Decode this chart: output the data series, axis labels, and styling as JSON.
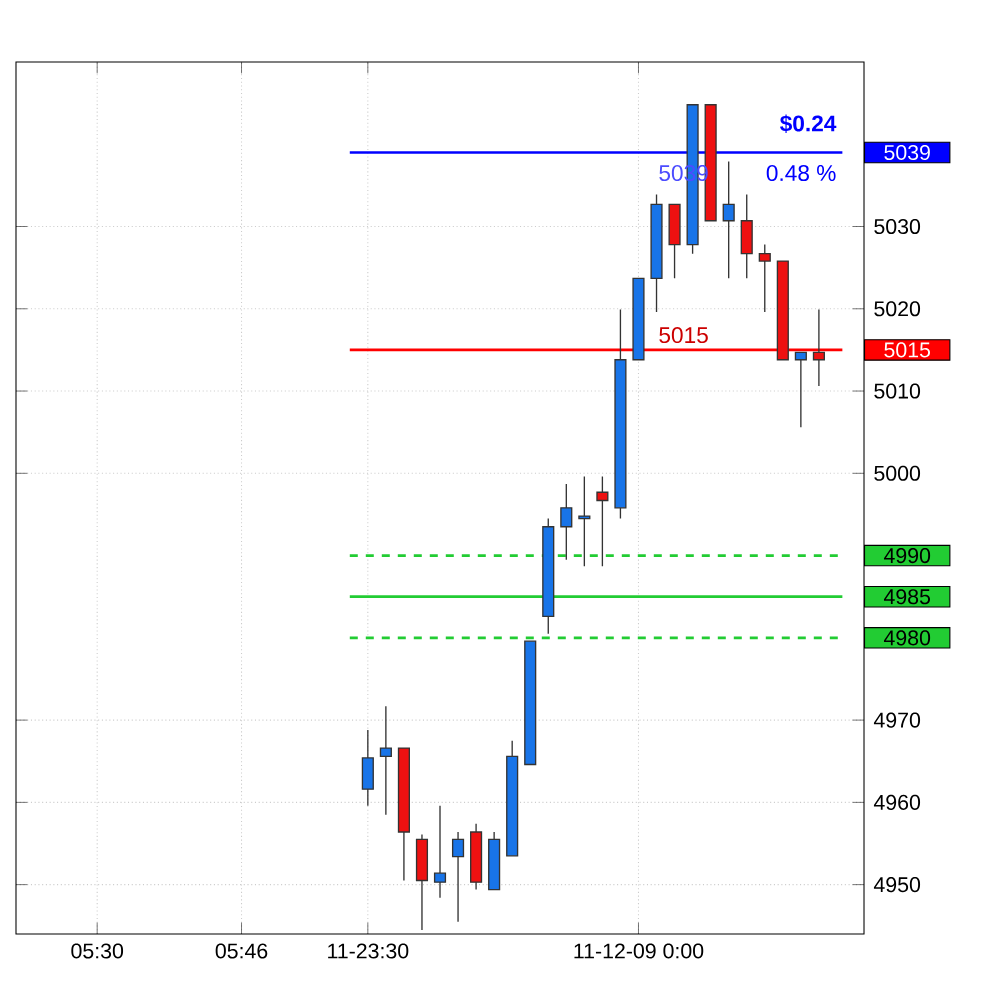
{
  "chart_data": {
    "type": "candlestick",
    "categories": [
      null,
      null,
      null,
      null,
      "05:30",
      null,
      null,
      null,
      null,
      null,
      null,
      null,
      "05:46",
      null,
      null,
      null,
      null,
      null,
      null,
      "11-23:30",
      null,
      null,
      null,
      null,
      null,
      null,
      null,
      null,
      null,
      null,
      null,
      null,
      null,
      null,
      "11-12-09 0:00",
      null,
      null,
      null,
      null,
      null,
      null,
      null,
      null,
      null,
      null,
      null,
      null
    ],
    "ohlc": [
      null,
      null,
      null,
      null,
      null,
      null,
      null,
      null,
      null,
      null,
      null,
      null,
      null,
      null,
      null,
      null,
      null,
      null,
      null,
      [
        4961.6,
        4968.8,
        4959.6,
        4965.4
      ],
      [
        4965.6,
        4971.7,
        4958.5,
        4966.6
      ],
      [
        4966.6,
        4966.6,
        4950.5,
        4956.4
      ],
      [
        4955.5,
        4956.1,
        4944.5,
        4950.5
      ],
      [
        4950.3,
        4959.6,
        4948.4,
        4951.4
      ],
      [
        4953.4,
        4956.4,
        4945.5,
        4955.5
      ],
      [
        4956.4,
        4957.4,
        4949.4,
        4950.3
      ],
      [
        4949.4,
        4956.4,
        4949.4,
        4955.5
      ],
      [
        4953.5,
        4967.5,
        4953.5,
        4965.6
      ],
      [
        4964.6,
        4979.6,
        4964.6,
        4979.6
      ],
      [
        4982.6,
        4994.5,
        4980.5,
        4993.5
      ],
      [
        4993.5,
        4998.7,
        4989.5,
        4995.8
      ],
      [
        4994.5,
        4999.6,
        4988.7,
        4994.8
      ],
      [
        4997.7,
        4999.6,
        4988.7,
        4996.7
      ],
      [
        4995.8,
        5019.9,
        4994.5,
        5013.8
      ],
      [
        5013.8,
        5023.7,
        5013.8,
        5023.7
      ],
      [
        5023.7,
        5033.9,
        5019.6,
        5032.7
      ],
      [
        5032.7,
        5032.7,
        5023.7,
        5027.8
      ],
      [
        5027.8,
        5044.8,
        5026.7,
        5044.8
      ],
      [
        5044.8,
        5044.8,
        5030.7,
        5030.7
      ],
      [
        5030.7,
        5037.9,
        5023.7,
        5032.7
      ],
      [
        5030.7,
        5033.9,
        5023.7,
        5026.7
      ],
      [
        5026.7,
        5027.8,
        5019.6,
        5025.8
      ],
      [
        5025.8,
        5025.8,
        5013.8,
        5013.8
      ],
      [
        5013.8,
        5014.7,
        5005.6,
        5014.7
      ],
      [
        5014.7,
        5019.9,
        5010.6,
        5013.8
      ],
      null,
      null
    ],
    "colors": [
      null,
      null,
      null,
      null,
      null,
      null,
      null,
      null,
      null,
      null,
      null,
      null,
      null,
      null,
      null,
      null,
      null,
      null,
      null,
      "#1874e8",
      "#1874e8",
      "#ee1111",
      "#ee1111",
      "#1874e8",
      "#1874e8",
      "#ee1111",
      "#1874e8",
      "#1874e8",
      "#1874e8",
      "#1874e8",
      "#1874e8",
      "#1874e8",
      "#ee1111",
      "#1874e8",
      "#1874e8",
      "#1874e8",
      "#ee1111",
      "#1874e8",
      "#ee1111",
      "#1874e8",
      "#ee1111",
      "#ee1111",
      "#ee1111",
      "#1874e8",
      "#ee1111",
      null,
      null
    ],
    "ylim": [
      4944,
      5050
    ],
    "yticks": [
      4950,
      4960,
      4970,
      5000,
      5010,
      5020,
      5030
    ],
    "grid": true,
    "ref_lines": [
      {
        "axis": "y",
        "value": 5039,
        "label": "5039",
        "color": "#0000ff"
      },
      {
        "axis": "y",
        "value": 5015,
        "label": "5015",
        "color": "#ff0000"
      },
      {
        "axis": "y",
        "value": 4990,
        "label": "4990",
        "color": "#22cc33",
        "line_style": "dashed"
      },
      {
        "axis": "y",
        "value": 4985,
        "label": "4985",
        "color": "#22cc33"
      },
      {
        "axis": "y",
        "value": 4980,
        "label": "4980",
        "color": "#22cc33",
        "line_style": "dashed"
      }
    ],
    "annotations": [
      "$0.24",
      "0.48 %",
      "5039",
      "5015"
    ]
  }
}
